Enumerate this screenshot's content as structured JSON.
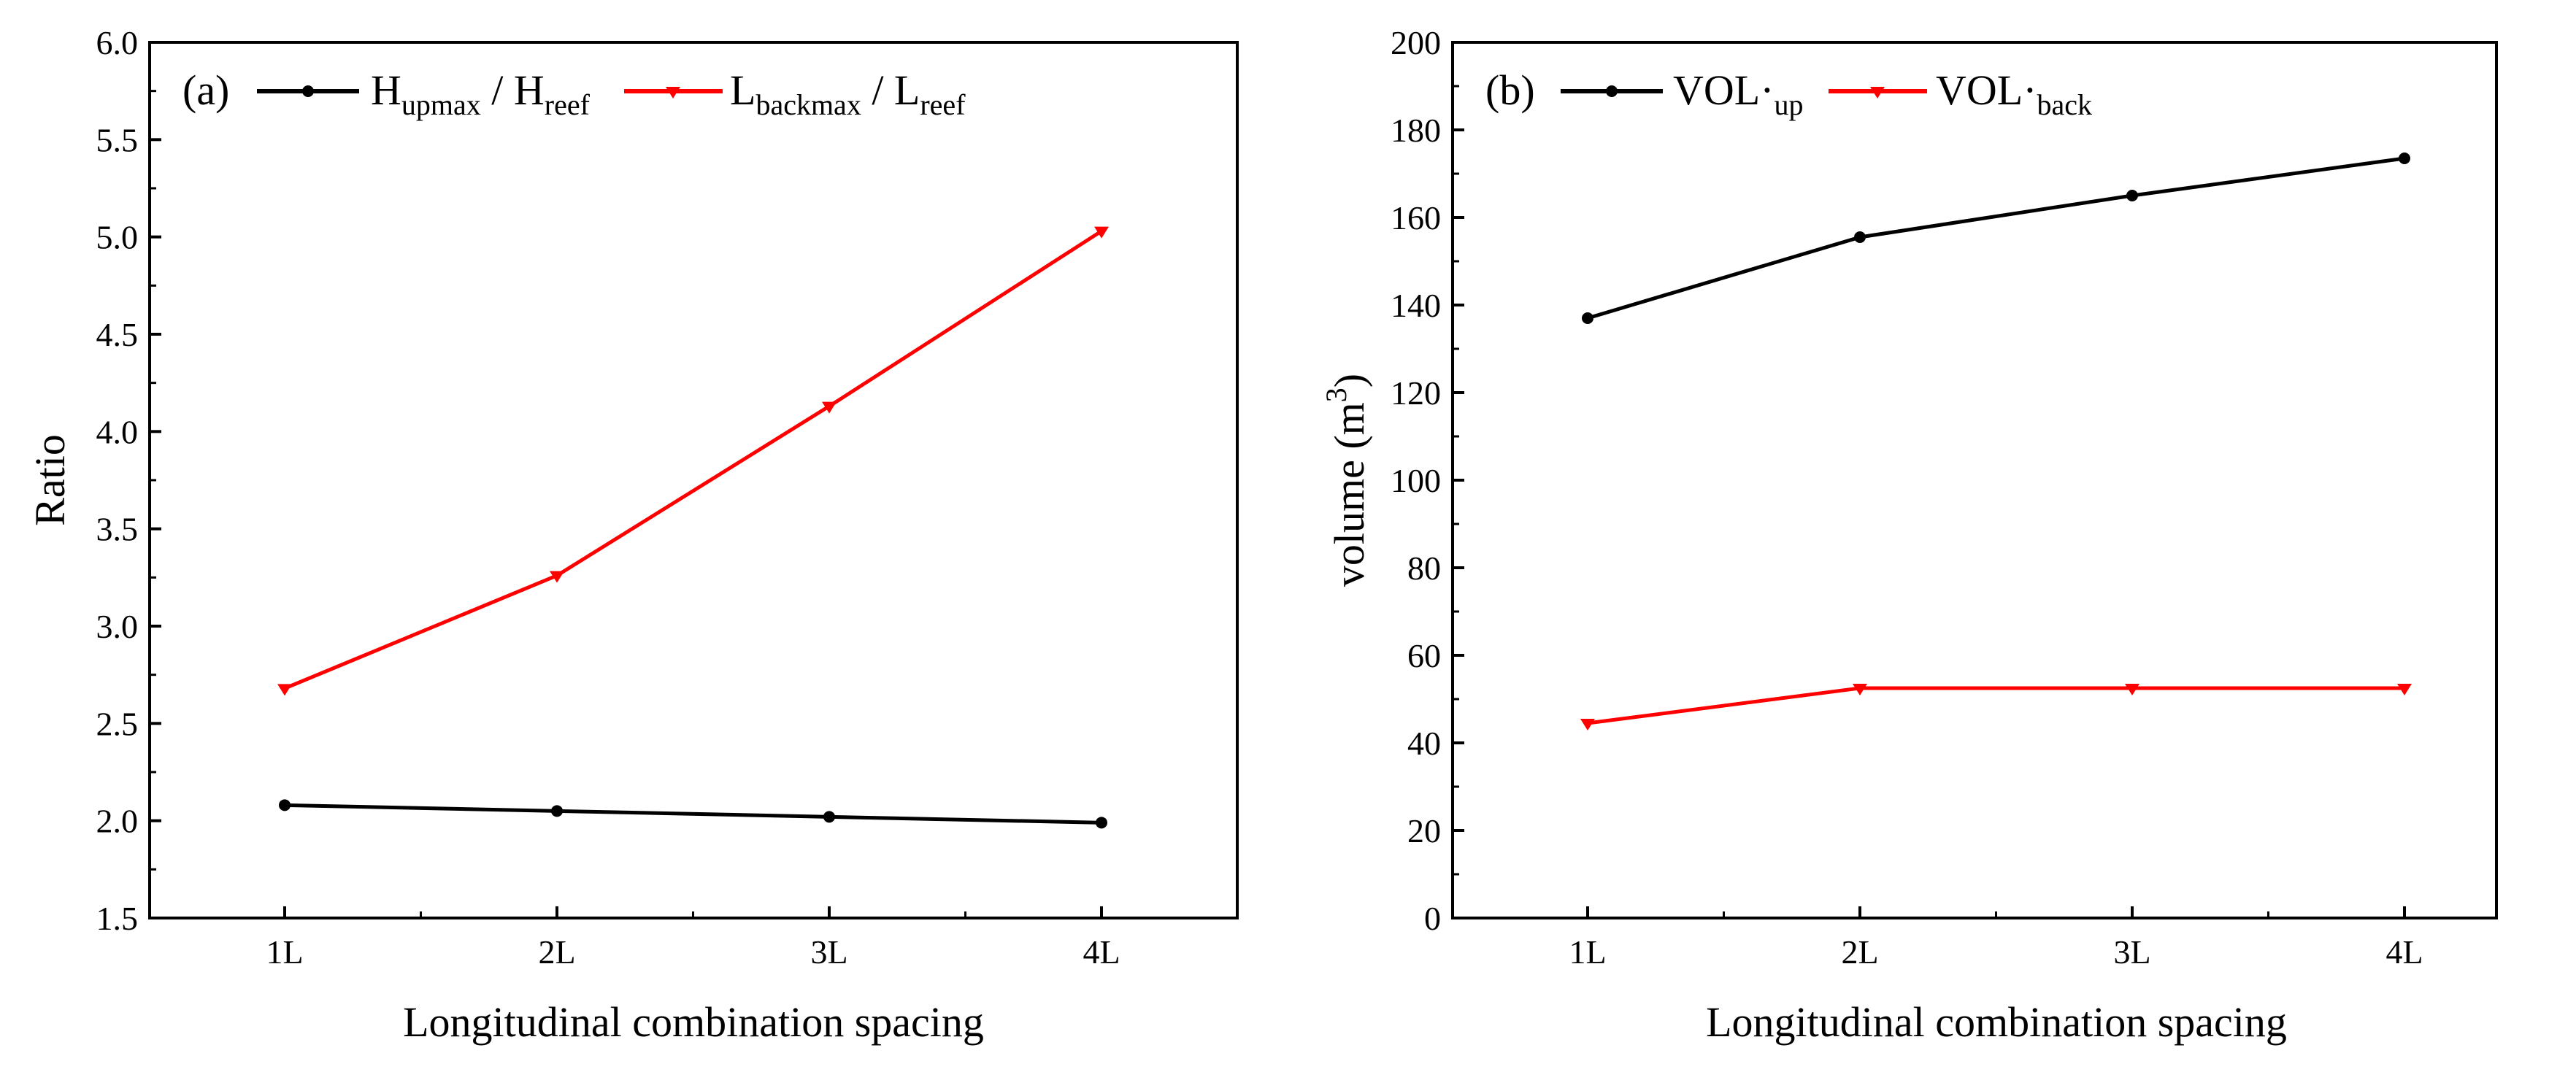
{
  "chart_data": [
    {
      "type": "line",
      "panel_label": "(a)",
      "categories": [
        "1L",
        "2L",
        "3L",
        "4L"
      ],
      "xlabel": "Longitudinal combination spacing",
      "ylabel": "Ratio",
      "ylim": [
        1.5,
        6.0
      ],
      "yticks": [
        "1.5",
        "2.0",
        "2.5",
        "3.0",
        "3.5",
        "4.0",
        "4.5",
        "5.0",
        "5.5",
        "6.0"
      ],
      "grid": false,
      "legend_position": "top-left",
      "series": [
        {
          "name": "Hupmax / Hreef",
          "legend": {
            "main1": "H",
            "sub1": "upmax",
            "mid": " / H",
            "sub2": "reef"
          },
          "values": [
            2.08,
            2.05,
            2.02,
            1.99
          ],
          "color": "#000000",
          "marker": "circle"
        },
        {
          "name": "Lbackmax / Lreef",
          "legend": {
            "main1": "L",
            "sub1": "backmax",
            "mid": " / L",
            "sub2": "reef"
          },
          "values": [
            2.68,
            3.26,
            4.13,
            5.03
          ],
          "color": "#ff0000",
          "marker": "triangle-down"
        }
      ]
    },
    {
      "type": "line",
      "panel_label": "(b)",
      "categories": [
        "1L",
        "2L",
        "3L",
        "4L"
      ],
      "xlabel": "Longitudinal combination spacing",
      "ylabel": {
        "main": "volume (m",
        "sup": "3",
        "close": ")"
      },
      "ylim": [
        0,
        200
      ],
      "yticks": [
        "0",
        "20",
        "40",
        "60",
        "80",
        "100",
        "120",
        "140",
        "160",
        "180",
        "200"
      ],
      "grid": false,
      "legend_position": "top-left",
      "series": [
        {
          "name": "VOL·up",
          "legend": {
            "main1": "VOL·",
            "sub1": "up",
            "mid": "",
            "sub2": ""
          },
          "values": [
            137,
            155.5,
            165,
            173.5
          ],
          "color": "#000000",
          "marker": "circle"
        },
        {
          "name": "VOL·back",
          "legend": {
            "main1": "VOL·",
            "sub1": "back",
            "mid": "",
            "sub2": ""
          },
          "values": [
            44.5,
            52.5,
            52.5,
            52.5
          ],
          "color": "#ff0000",
          "marker": "triangle-down"
        }
      ]
    }
  ]
}
